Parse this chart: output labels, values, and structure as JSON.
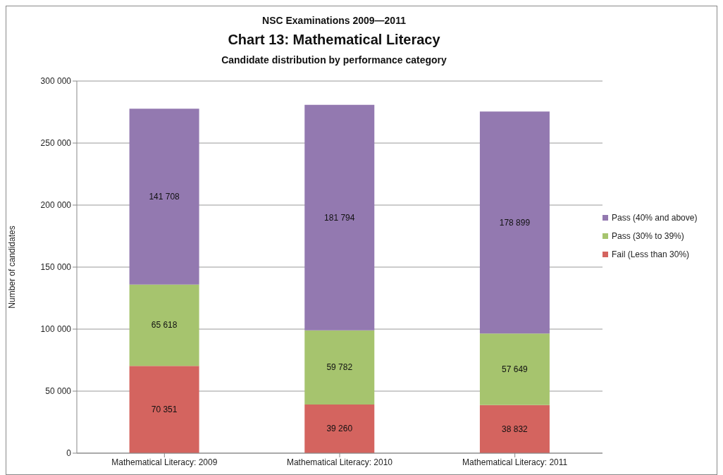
{
  "chart_data": {
    "type": "bar",
    "title": "NSC Examinations 2009—2011",
    "subtitle": "Chart 13: Mathematical Literacy",
    "annotations": [
      "Candidate distribution by performance category"
    ],
    "ylabel": "Number of candidates",
    "categories": [
      "Mathematical Literacy: 2009",
      "Mathematical Literacy: 2010",
      "Mathematical Literacy: 2011"
    ],
    "stacked": true,
    "ylim": [
      0,
      300000
    ],
    "yticks": [
      {
        "value": 0,
        "label": "0"
      },
      {
        "value": 50000,
        "label": "50 000"
      },
      {
        "value": 100000,
        "label": "100 000"
      },
      {
        "value": 150000,
        "label": "150 000"
      },
      {
        "value": 200000,
        "label": "200 000"
      },
      {
        "value": 250000,
        "label": "250 000"
      },
      {
        "value": 300000,
        "label": "300 000"
      }
    ],
    "grid": "y",
    "legend": "right",
    "series": [
      {
        "name": "Fail (Less than 30%)",
        "color": "#d4645f",
        "values": [
          70351,
          39260,
          38832
        ],
        "value_labels": [
          "70 351",
          "39 260",
          "38 832"
        ]
      },
      {
        "name": "Pass (30% to 39%)",
        "color": "#a6c46e",
        "values": [
          65618,
          59782,
          57649
        ],
        "value_labels": [
          "65 618",
          "59 782",
          "57 649"
        ]
      },
      {
        "name": "Pass (40% and above)",
        "color": "#9379b0",
        "values": [
          141708,
          181794,
          178899
        ],
        "value_labels": [
          "141 708",
          "181 794",
          "178 899"
        ]
      }
    ]
  }
}
